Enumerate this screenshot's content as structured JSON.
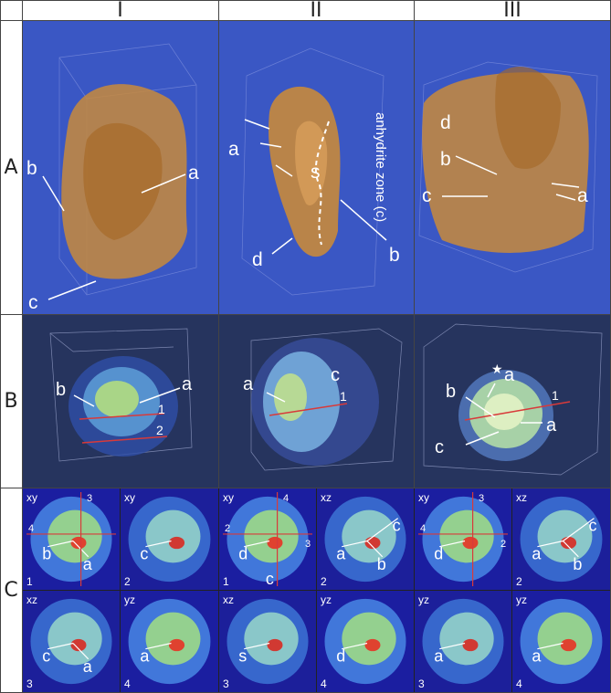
{
  "columns": [
    "I",
    "II",
    "III"
  ],
  "rows": [
    "A",
    "B",
    "C"
  ],
  "rowA": {
    "I": {
      "labels": [
        "b",
        "a",
        "c"
      ]
    },
    "II": {
      "labels": [
        "a",
        "s",
        "d",
        "b"
      ],
      "zone": "anhydrite zone (c)"
    },
    "III": {
      "labels": [
        "d",
        "b",
        "c",
        "a",
        "a"
      ]
    }
  },
  "rowB": {
    "I": {
      "labels": [
        "b",
        "a"
      ],
      "lines": [
        "1",
        "2"
      ]
    },
    "II": {
      "labels": [
        "a",
        "c"
      ],
      "lines": [
        "1"
      ]
    },
    "III": {
      "labels": [
        "a",
        "b",
        "a",
        "c"
      ],
      "lines": [
        "1"
      ],
      "star": "★"
    }
  },
  "rowC": {
    "panels": [
      {
        "plane": "xy",
        "num": "1",
        "labels": [
          "b",
          "a"
        ],
        "marks": [
          "3",
          "4"
        ]
      },
      {
        "plane": "xy",
        "num": "2",
        "labels": [
          "c"
        ]
      },
      {
        "plane": "xy",
        "num": "1",
        "labels": [
          "d"
        ],
        "marks": [
          "4",
          "2",
          "3"
        ],
        "extra": "c"
      },
      {
        "plane": "xz",
        "num": "2",
        "labels": [
          "a",
          "b",
          "c"
        ]
      },
      {
        "plane": "xy",
        "num": "",
        "labels": [
          "d"
        ],
        "marks": [
          "3",
          "4",
          "2"
        ]
      },
      {
        "plane": "xz",
        "num": "2",
        "labels": [
          "a",
          "b",
          "c"
        ]
      },
      {
        "plane": "xz",
        "num": "3",
        "labels": [
          "c",
          "a"
        ]
      },
      {
        "plane": "yz",
        "num": "4",
        "labels": [
          "a"
        ]
      },
      {
        "plane": "xz",
        "num": "3",
        "labels": [
          "s"
        ]
      },
      {
        "plane": "yz",
        "num": "4",
        "labels": [
          "d"
        ]
      },
      {
        "plane": "yz",
        "num": "3",
        "labels": [
          "a"
        ]
      },
      {
        "plane": "yz",
        "num": "4",
        "labels": [
          "a"
        ]
      }
    ]
  }
}
